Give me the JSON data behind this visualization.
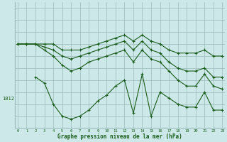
{
  "bg_color": "#cce8e8",
  "grid_color": "#99bbbb",
  "line_color": "#1a5c1a",
  "marker_color": "#1a5c1a",
  "xlabel": "Graphe pression niveau de la mer (hPa)",
  "xlabel_color": "#1a5c1a",
  "ylabel_value": 1012,
  "xlim_min": -0.3,
  "xlim_max": 23.3,
  "ylim_min": 1007,
  "ylim_max": 1028,
  "series1_x": [
    0,
    1,
    2,
    3,
    4,
    5,
    6,
    7,
    8,
    9,
    10,
    11,
    12,
    13,
    14,
    15,
    16,
    17,
    18,
    19,
    20,
    21,
    22,
    23
  ],
  "series1_y": [
    1021,
    1021,
    1021,
    1021,
    1021,
    1020,
    1020,
    1020,
    1020.5,
    1021,
    1021.5,
    1022,
    1022.5,
    1021.5,
    1022.5,
    1021.5,
    1021,
    1020,
    1019.5,
    1019.5,
    1019.5,
    1020,
    1019,
    1019
  ],
  "series2_x": [
    0,
    1,
    2,
    3,
    4,
    5,
    6,
    7,
    8,
    9,
    10,
    11,
    12,
    13,
    14,
    15,
    16,
    17,
    18,
    19,
    20,
    21,
    22,
    23
  ],
  "series2_y": [
    1021,
    1021,
    1021,
    1020.5,
    1020,
    1019,
    1018.5,
    1019,
    1019.5,
    1020,
    1020.5,
    1021,
    1021.5,
    1020,
    1021.5,
    1020,
    1019.5,
    1018,
    1017,
    1016.5,
    1016.5,
    1017,
    1015.5,
    1015.5
  ],
  "series3_x": [
    0,
    1,
    2,
    3,
    4,
    5,
    6,
    7,
    8,
    9,
    10,
    11,
    12,
    13,
    14,
    15,
    16,
    17,
    18,
    19,
    20,
    21,
    22,
    23
  ],
  "series3_y": [
    1021,
    1021,
    1021,
    1020,
    1019,
    1017.5,
    1016.5,
    1017,
    1018,
    1018.5,
    1019,
    1019.5,
    1020,
    1018,
    1020,
    1018.5,
    1018,
    1016.5,
    1015,
    1014,
    1014,
    1016,
    1014,
    1013.5
  ],
  "series4_x": [
    2,
    3,
    4,
    5,
    6,
    7,
    8,
    9,
    10,
    11,
    12,
    13,
    14,
    15,
    16,
    17,
    18,
    19,
    20,
    21,
    22,
    23
  ],
  "series4_y": [
    1015.5,
    1014.5,
    1011,
    1009,
    1008.5,
    1009,
    1010,
    1011.5,
    1012.5,
    1014,
    1015,
    1009.5,
    1016,
    1009,
    1013,
    1012,
    1011,
    1010.5,
    1010.5,
    1013,
    1010,
    1010
  ]
}
